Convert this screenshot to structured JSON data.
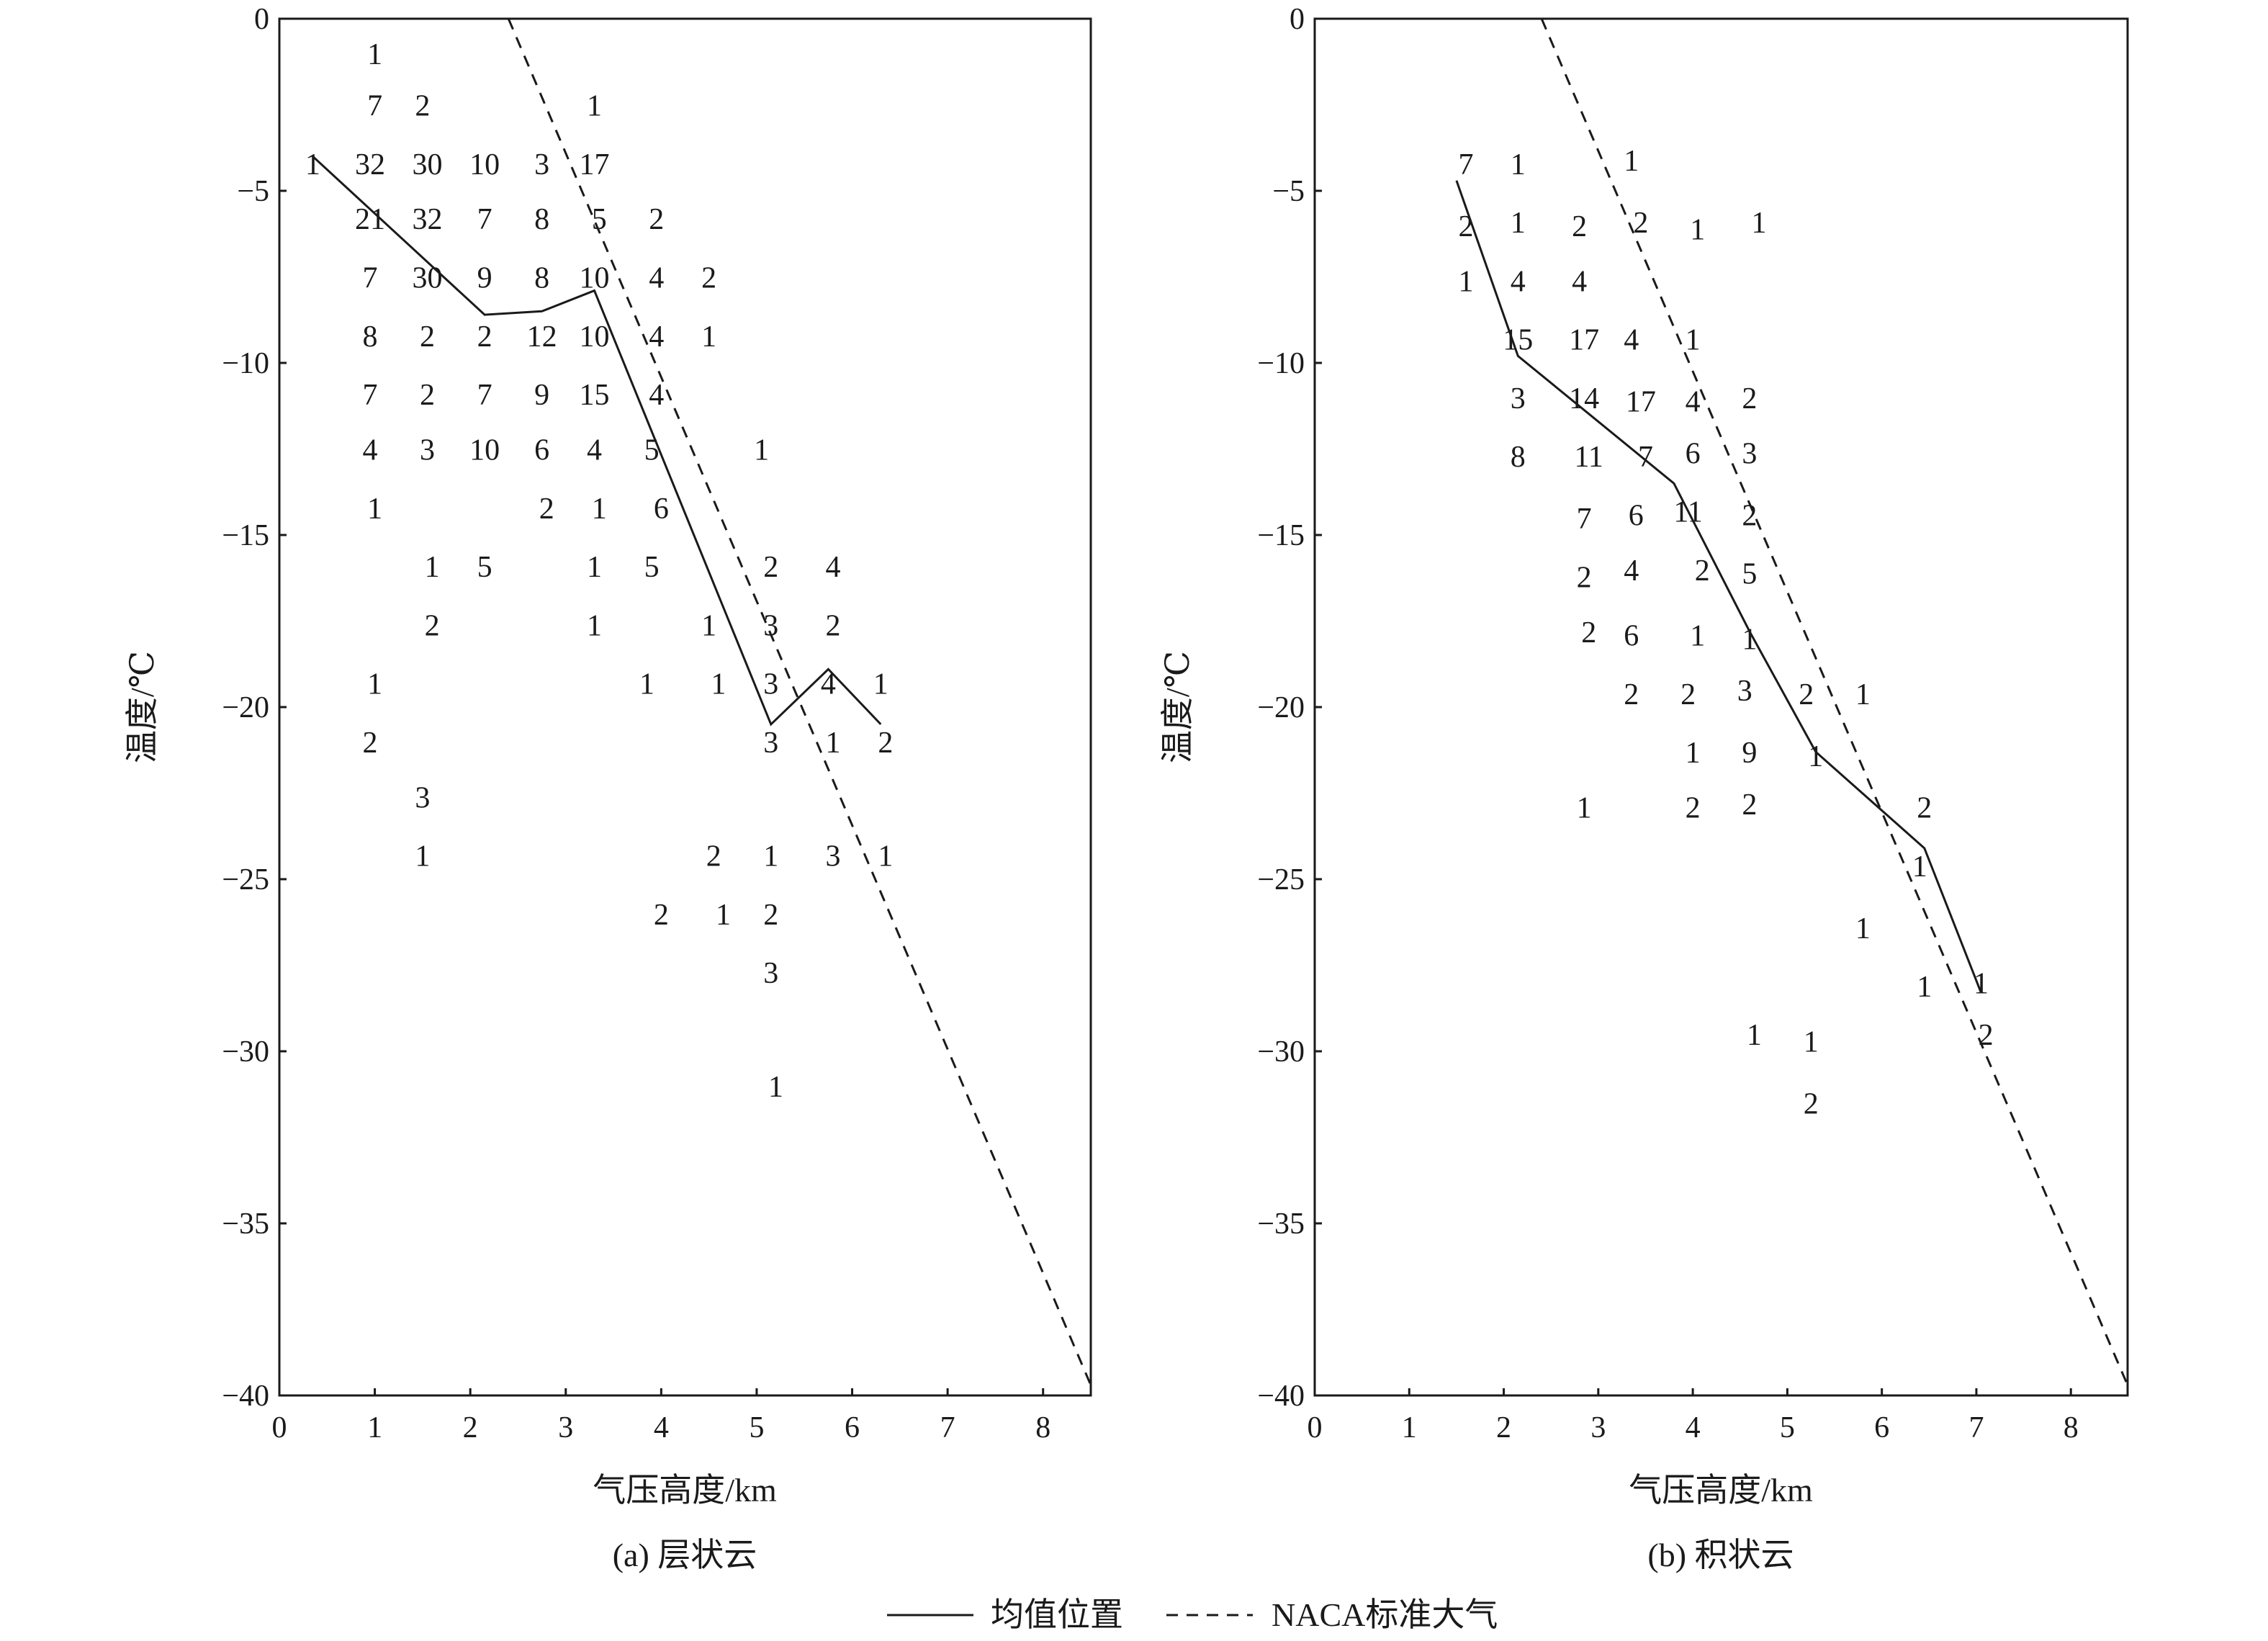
{
  "chart_data": [
    {
      "type": "scatter",
      "caption": "(a) 层状云",
      "xlabel": "气压高度/km",
      "ylabel": "温度/℃",
      "xlim": [
        0,
        8.5
      ],
      "ylim": [
        -40,
        0
      ],
      "x_ticks": [
        0,
        1,
        2,
        3,
        4,
        5,
        6,
        7,
        8
      ],
      "y_ticks": [
        0,
        -5,
        -10,
        -15,
        -20,
        -25,
        -30,
        -35,
        -40
      ],
      "x_tick_labels": [
        "0",
        "1",
        "2",
        "3",
        "4",
        "5",
        "6",
        "7",
        "8"
      ],
      "y_tick_labels": [
        "0",
        "−5",
        "−10",
        "−15",
        "−20",
        "−25",
        "−30",
        "−35",
        "−40"
      ],
      "counts": [
        {
          "x": 1.0,
          "y": -1.0,
          "n": "1"
        },
        {
          "x": 1.0,
          "y": -2.5,
          "n": "7"
        },
        {
          "x": 1.5,
          "y": -2.5,
          "n": "2"
        },
        {
          "x": 3.3,
          "y": -2.5,
          "n": "1"
        },
        {
          "x": 0.35,
          "y": -4.2,
          "n": "1"
        },
        {
          "x": 0.95,
          "y": -4.2,
          "n": "32"
        },
        {
          "x": 1.55,
          "y": -4.2,
          "n": "30"
        },
        {
          "x": 2.15,
          "y": -4.2,
          "n": "10"
        },
        {
          "x": 2.75,
          "y": -4.2,
          "n": "3"
        },
        {
          "x": 3.3,
          "y": -4.2,
          "n": "17"
        },
        {
          "x": 0.95,
          "y": -5.8,
          "n": "21"
        },
        {
          "x": 1.55,
          "y": -5.8,
          "n": "32"
        },
        {
          "x": 2.15,
          "y": -5.8,
          "n": "7"
        },
        {
          "x": 2.75,
          "y": -5.8,
          "n": "8"
        },
        {
          "x": 3.35,
          "y": -5.8,
          "n": "5"
        },
        {
          "x": 3.95,
          "y": -5.8,
          "n": "2"
        },
        {
          "x": 0.95,
          "y": -7.5,
          "n": "7"
        },
        {
          "x": 1.55,
          "y": -7.5,
          "n": "30"
        },
        {
          "x": 2.15,
          "y": -7.5,
          "n": "9"
        },
        {
          "x": 2.75,
          "y": -7.5,
          "n": "8"
        },
        {
          "x": 3.3,
          "y": -7.5,
          "n": "10"
        },
        {
          "x": 3.95,
          "y": -7.5,
          "n": "4"
        },
        {
          "x": 4.5,
          "y": -7.5,
          "n": "2"
        },
        {
          "x": 0.95,
          "y": -9.2,
          "n": "8"
        },
        {
          "x": 1.55,
          "y": -9.2,
          "n": "2"
        },
        {
          "x": 2.15,
          "y": -9.2,
          "n": "2"
        },
        {
          "x": 2.75,
          "y": -9.2,
          "n": "12"
        },
        {
          "x": 3.3,
          "y": -9.2,
          "n": "10"
        },
        {
          "x": 3.95,
          "y": -9.2,
          "n": "4"
        },
        {
          "x": 4.5,
          "y": -9.2,
          "n": "1"
        },
        {
          "x": 0.95,
          "y": -10.9,
          "n": "7"
        },
        {
          "x": 1.55,
          "y": -10.9,
          "n": "2"
        },
        {
          "x": 2.15,
          "y": -10.9,
          "n": "7"
        },
        {
          "x": 2.75,
          "y": -10.9,
          "n": "9"
        },
        {
          "x": 3.3,
          "y": -10.9,
          "n": "15"
        },
        {
          "x": 3.95,
          "y": -10.9,
          "n": "4"
        },
        {
          "x": 0.95,
          "y": -12.5,
          "n": "4"
        },
        {
          "x": 1.55,
          "y": -12.5,
          "n": "3"
        },
        {
          "x": 2.15,
          "y": -12.5,
          "n": "10"
        },
        {
          "x": 2.75,
          "y": -12.5,
          "n": "6"
        },
        {
          "x": 3.3,
          "y": -12.5,
          "n": "4"
        },
        {
          "x": 3.9,
          "y": -12.5,
          "n": "5"
        },
        {
          "x": 5.05,
          "y": -12.5,
          "n": "1"
        },
        {
          "x": 1.0,
          "y": -14.2,
          "n": "1"
        },
        {
          "x": 2.8,
          "y": -14.2,
          "n": "2"
        },
        {
          "x": 3.35,
          "y": -14.2,
          "n": "1"
        },
        {
          "x": 4.0,
          "y": -14.2,
          "n": "6"
        },
        {
          "x": 1.6,
          "y": -15.9,
          "n": "1"
        },
        {
          "x": 2.15,
          "y": -15.9,
          "n": "5"
        },
        {
          "x": 3.3,
          "y": -15.9,
          "n": "1"
        },
        {
          "x": 3.9,
          "y": -15.9,
          "n": "5"
        },
        {
          "x": 5.15,
          "y": -15.9,
          "n": "2"
        },
        {
          "x": 5.8,
          "y": -15.9,
          "n": "4"
        },
        {
          "x": 1.6,
          "y": -17.6,
          "n": "2"
        },
        {
          "x": 3.3,
          "y": -17.6,
          "n": "1"
        },
        {
          "x": 4.5,
          "y": -17.6,
          "n": "1"
        },
        {
          "x": 5.15,
          "y": -17.6,
          "n": "3"
        },
        {
          "x": 5.8,
          "y": -17.6,
          "n": "2"
        },
        {
          "x": 1.0,
          "y": -19.3,
          "n": "1"
        },
        {
          "x": 3.85,
          "y": -19.3,
          "n": "1"
        },
        {
          "x": 4.6,
          "y": -19.3,
          "n": "1"
        },
        {
          "x": 5.15,
          "y": -19.3,
          "n": "3"
        },
        {
          "x": 5.75,
          "y": -19.3,
          "n": "4"
        },
        {
          "x": 6.3,
          "y": -19.3,
          "n": "1"
        },
        {
          "x": 0.95,
          "y": -21.0,
          "n": "2"
        },
        {
          "x": 5.15,
          "y": -21.0,
          "n": "3"
        },
        {
          "x": 5.8,
          "y": -21.0,
          "n": "1"
        },
        {
          "x": 6.35,
          "y": -21.0,
          "n": "2"
        },
        {
          "x": 1.5,
          "y": -22.6,
          "n": "3"
        },
        {
          "x": 1.5,
          "y": -24.3,
          "n": "1"
        },
        {
          "x": 4.55,
          "y": -24.3,
          "n": "2"
        },
        {
          "x": 5.15,
          "y": -24.3,
          "n": "1"
        },
        {
          "x": 5.8,
          "y": -24.3,
          "n": "3"
        },
        {
          "x": 6.35,
          "y": -24.3,
          "n": "1"
        },
        {
          "x": 4.0,
          "y": -26.0,
          "n": "2"
        },
        {
          "x": 4.65,
          "y": -26.0,
          "n": "1"
        },
        {
          "x": 5.15,
          "y": -26.0,
          "n": "2"
        },
        {
          "x": 5.15,
          "y": -27.7,
          "n": "3"
        },
        {
          "x": 5.2,
          "y": -31.0,
          "n": "1"
        }
      ],
      "series": [
        {
          "name": "均值位置",
          "style": "solid",
          "x": [
            0.35,
            2.15,
            2.75,
            3.3,
            5.15,
            5.75,
            6.3
          ],
          "y": [
            -4.0,
            -8.6,
            -8.5,
            -7.9,
            -20.5,
            -18.9,
            -20.5
          ]
        },
        {
          "name": "NACA标准大气",
          "style": "dashed",
          "x": [
            2.4,
            8.5
          ],
          "y": [
            0,
            -39.7
          ]
        }
      ]
    },
    {
      "type": "scatter",
      "caption": "(b) 积状云",
      "xlabel": "气压高度/km",
      "ylabel": "温度/℃",
      "xlim": [
        0,
        8.6
      ],
      "ylim": [
        -40,
        0
      ],
      "x_ticks": [
        0,
        1,
        2,
        3,
        4,
        5,
        6,
        7,
        8
      ],
      "y_ticks": [
        0,
        -5,
        -10,
        -15,
        -20,
        -25,
        -30,
        -35,
        -40
      ],
      "x_tick_labels": [
        "0",
        "1",
        "2",
        "3",
        "4",
        "5",
        "6",
        "7",
        "8"
      ],
      "y_tick_labels": [
        "0",
        "−5",
        "−10",
        "−15",
        "−20",
        "−25",
        "−30",
        "−35",
        "−40"
      ],
      "counts": [
        {
          "x": 1.6,
          "y": -4.2,
          "n": "7"
        },
        {
          "x": 2.15,
          "y": -4.2,
          "n": "1"
        },
        {
          "x": 3.35,
          "y": -4.1,
          "n": "1"
        },
        {
          "x": 1.6,
          "y": -6.0,
          "n": "2"
        },
        {
          "x": 2.15,
          "y": -5.9,
          "n": "1"
        },
        {
          "x": 2.8,
          "y": -6.0,
          "n": "2"
        },
        {
          "x": 3.45,
          "y": -5.9,
          "n": "2"
        },
        {
          "x": 4.05,
          "y": -6.1,
          "n": "1"
        },
        {
          "x": 4.7,
          "y": -5.9,
          "n": "1"
        },
        {
          "x": 1.6,
          "y": -7.6,
          "n": "1"
        },
        {
          "x": 2.15,
          "y": -7.6,
          "n": "4"
        },
        {
          "x": 2.8,
          "y": -7.6,
          "n": "4"
        },
        {
          "x": 2.15,
          "y": -9.3,
          "n": "15"
        },
        {
          "x": 2.85,
          "y": -9.3,
          "n": "17"
        },
        {
          "x": 3.35,
          "y": -9.3,
          "n": "4"
        },
        {
          "x": 4.0,
          "y": -9.3,
          "n": "1"
        },
        {
          "x": 2.15,
          "y": -11.0,
          "n": "3"
        },
        {
          "x": 2.85,
          "y": -11.0,
          "n": "14"
        },
        {
          "x": 3.45,
          "y": -11.1,
          "n": "17"
        },
        {
          "x": 4.0,
          "y": -11.1,
          "n": "4"
        },
        {
          "x": 4.6,
          "y": -11.0,
          "n": "2"
        },
        {
          "x": 2.15,
          "y": -12.7,
          "n": "8"
        },
        {
          "x": 2.9,
          "y": -12.7,
          "n": "11"
        },
        {
          "x": 3.5,
          "y": -12.7,
          "n": "7"
        },
        {
          "x": 4.0,
          "y": -12.6,
          "n": "6"
        },
        {
          "x": 4.6,
          "y": -12.6,
          "n": "3"
        },
        {
          "x": 2.85,
          "y": -14.5,
          "n": "7"
        },
        {
          "x": 3.4,
          "y": -14.4,
          "n": "6"
        },
        {
          "x": 3.95,
          "y": -14.3,
          "n": "11"
        },
        {
          "x": 4.6,
          "y": -14.4,
          "n": "2"
        },
        {
          "x": 2.85,
          "y": -16.2,
          "n": "2"
        },
        {
          "x": 3.35,
          "y": -16.0,
          "n": "4"
        },
        {
          "x": 4.1,
          "y": -16.0,
          "n": "2"
        },
        {
          "x": 4.6,
          "y": -16.1,
          "n": "5"
        },
        {
          "x": 2.9,
          "y": -17.8,
          "n": "2"
        },
        {
          "x": 3.35,
          "y": -17.9,
          "n": "6"
        },
        {
          "x": 4.05,
          "y": -17.9,
          "n": "1"
        },
        {
          "x": 4.6,
          "y": -18.0,
          "n": "1"
        },
        {
          "x": 3.35,
          "y": -19.6,
          "n": "2"
        },
        {
          "x": 3.95,
          "y": -19.6,
          "n": "2"
        },
        {
          "x": 4.55,
          "y": -19.5,
          "n": "3"
        },
        {
          "x": 5.2,
          "y": -19.6,
          "n": "2"
        },
        {
          "x": 5.8,
          "y": -19.6,
          "n": "1"
        },
        {
          "x": 4.0,
          "y": -21.3,
          "n": "1"
        },
        {
          "x": 4.6,
          "y": -21.3,
          "n": "9"
        },
        {
          "x": 5.3,
          "y": -21.4,
          "n": "1"
        },
        {
          "x": 2.85,
          "y": -22.9,
          "n": "1"
        },
        {
          "x": 4.0,
          "y": -22.9,
          "n": "2"
        },
        {
          "x": 4.6,
          "y": -22.8,
          "n": "2"
        },
        {
          "x": 6.45,
          "y": -22.9,
          "n": "2"
        },
        {
          "x": 6.4,
          "y": -24.6,
          "n": "1"
        },
        {
          "x": 5.8,
          "y": -26.4,
          "n": "1"
        },
        {
          "x": 6.45,
          "y": -28.1,
          "n": "1"
        },
        {
          "x": 7.05,
          "y": -28.0,
          "n": "1"
        },
        {
          "x": 7.1,
          "y": -29.5,
          "n": "2"
        },
        {
          "x": 4.65,
          "y": -29.5,
          "n": "1"
        },
        {
          "x": 5.25,
          "y": -29.7,
          "n": "1"
        },
        {
          "x": 5.25,
          "y": -31.5,
          "n": "2"
        }
      ],
      "series": [
        {
          "name": "均值位置",
          "style": "solid",
          "x": [
            1.5,
            2.15,
            3.8,
            4.6,
            5.3,
            6.45,
            7.05
          ],
          "y": [
            -4.7,
            -9.8,
            -13.5,
            -17.8,
            -21.3,
            -24.1,
            -28.3
          ]
        },
        {
          "name": "NACA标准大气",
          "style": "dashed",
          "x": [
            2.4,
            8.6
          ],
          "y": [
            0,
            -39.7
          ]
        }
      ]
    }
  ],
  "legend": {
    "solid_label": "均值位置",
    "dashed_label": "NACA标准大气"
  }
}
